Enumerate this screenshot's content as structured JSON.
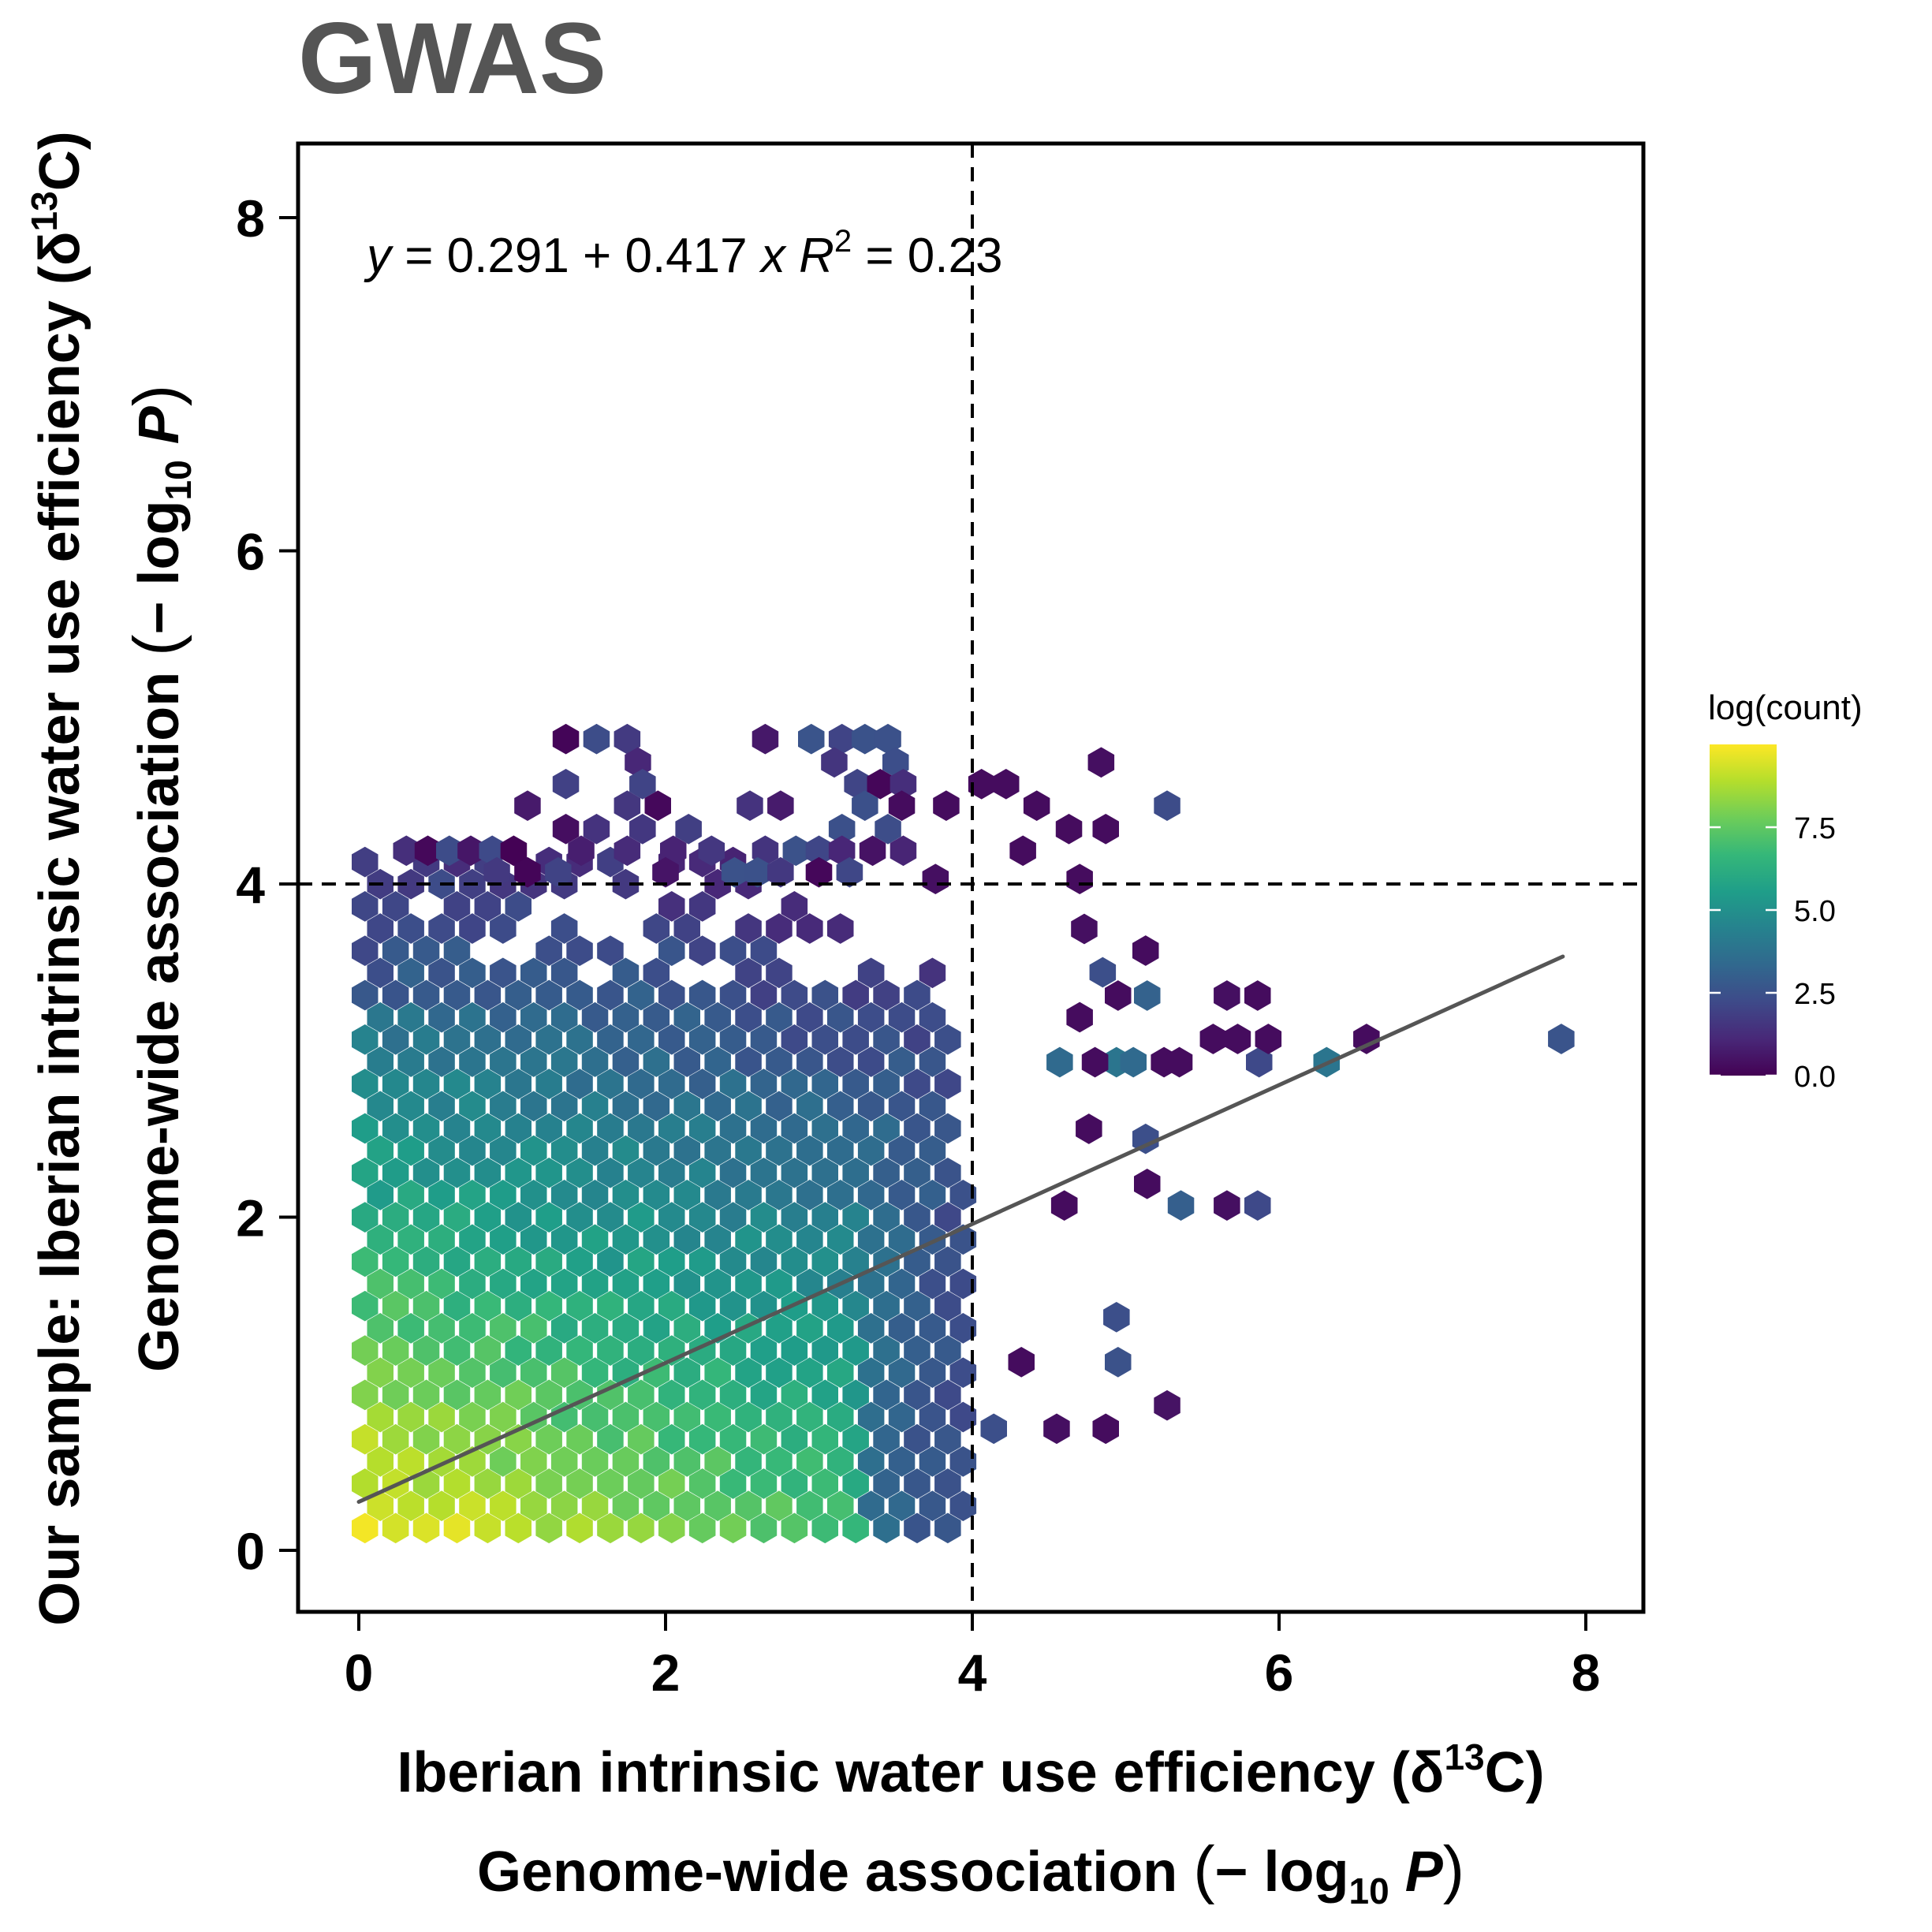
{
  "chart_data": {
    "type": "hexbin",
    "title": "GWAS",
    "equation": "y = 0.291 + 0.417 x",
    "r2_label": "R² = 0.23",
    "xlabel_line1": "Iberian intrinsic water use efficiency (δ¹³C)",
    "xlabel_line2": "Genome-wide association (−log₁₀ P)",
    "ylabel_line1": "Our sample: Iberian intrinsic water use efficiency (δ¹³C)",
    "ylabel_line2": "Genome-wide association (−log₁₀ P)",
    "xlim": [
      -0.4,
      8.4
    ],
    "ylim": [
      -0.35,
      8.4
    ],
    "xticks": [
      0,
      2,
      4,
      6,
      8
    ],
    "yticks": [
      0,
      2,
      4,
      6,
      8
    ],
    "thresholds": {
      "x": 4,
      "y": 4
    },
    "regression": {
      "intercept": 0.291,
      "slope": 0.417,
      "x_range": [
        0,
        7.85
      ],
      "r2": 0.23
    },
    "legend": {
      "title": "log(count)",
      "ticks": [
        0.0,
        2.5,
        5.0,
        7.5
      ],
      "tick_labels": [
        "0.0",
        "2.5",
        "5.0",
        "7.5"
      ],
      "range": [
        0,
        10
      ],
      "placement": "right"
    },
    "colors": {
      "viridis": [
        "#440154",
        "#482878",
        "#3E4A89",
        "#31688E",
        "#26828E",
        "#1F9E89",
        "#35B779",
        "#6DCD59",
        "#B4DE2C",
        "#FDE725"
      ],
      "regression_line": "#555555",
      "title": "#555555",
      "axes": "#000000"
    },
    "hex_grid": {
      "dx": 0.2,
      "dy": 0.1333,
      "x_start": 0.04,
      "y_start": 0.1333
    },
    "outliers": [
      [
        7.84,
        3.07,
        2.6
      ],
      [
        6.57,
        3.07,
        0.3
      ],
      [
        6.31,
        2.93,
        3.9
      ],
      [
        5.87,
        2.93,
        2.2
      ],
      [
        5.73,
        3.07,
        0.3
      ],
      [
        5.86,
        3.33,
        0.3
      ],
      [
        5.66,
        3.33,
        0.4
      ],
      [
        5.86,
        2.07,
        2.2
      ],
      [
        5.66,
        2.07,
        0.4
      ],
      [
        5.36,
        2.07,
        3.0
      ],
      [
        5.14,
        2.2,
        0.3
      ],
      [
        5.13,
        2.47,
        2.4
      ],
      [
        5.27,
        4.47,
        2.3
      ],
      [
        5.27,
        0.87,
        0.5
      ],
      [
        4.87,
        0.73,
        0.3
      ],
      [
        4.95,
        1.13,
        2.5
      ],
      [
        4.94,
        1.4,
        2.4
      ],
      [
        4.84,
        4.73,
        0.4
      ],
      [
        4.87,
        4.33,
        0.3
      ],
      [
        4.63,
        4.33,
        0.3
      ],
      [
        4.22,
        4.6,
        0.3
      ],
      [
        4.06,
        4.6,
        0.3
      ],
      [
        4.33,
        4.2,
        0.3
      ],
      [
        4.7,
        4.03,
        0.3
      ],
      [
        3.76,
        4.03,
        0.4
      ],
      [
        3.83,
        4.47,
        0.3
      ],
      [
        3.54,
        4.47,
        0.3
      ],
      [
        4.6,
        2.07,
        0.3
      ],
      [
        4.55,
        0.73,
        0.4
      ],
      [
        4.32,
        1.13,
        0.3
      ],
      [
        4.14,
        0.73,
        2.4
      ],
      [
        5.13,
        3.6,
        0.3
      ],
      [
        5.14,
        3.33,
        3.1
      ],
      [
        4.76,
        2.53,
        0.3
      ],
      [
        4.57,
        2.93,
        3.4
      ],
      [
        4.7,
        3.2,
        0.3
      ],
      [
        4.94,
        2.93,
        3.9
      ],
      [
        5.05,
        2.93,
        3.4
      ],
      [
        5.25,
        2.93,
        0.3
      ],
      [
        5.35,
        2.93,
        0.3
      ],
      [
        5.57,
        3.07,
        0.3
      ],
      [
        5.93,
        3.07,
        0.3
      ],
      [
        4.8,
        2.93,
        0.3
      ],
      [
        4.85,
        3.47,
        2.4
      ],
      [
        4.73,
        3.73,
        0.4
      ],
      [
        4.95,
        3.33,
        0.3
      ],
      [
        4.42,
        4.47,
        0.3
      ]
    ]
  }
}
